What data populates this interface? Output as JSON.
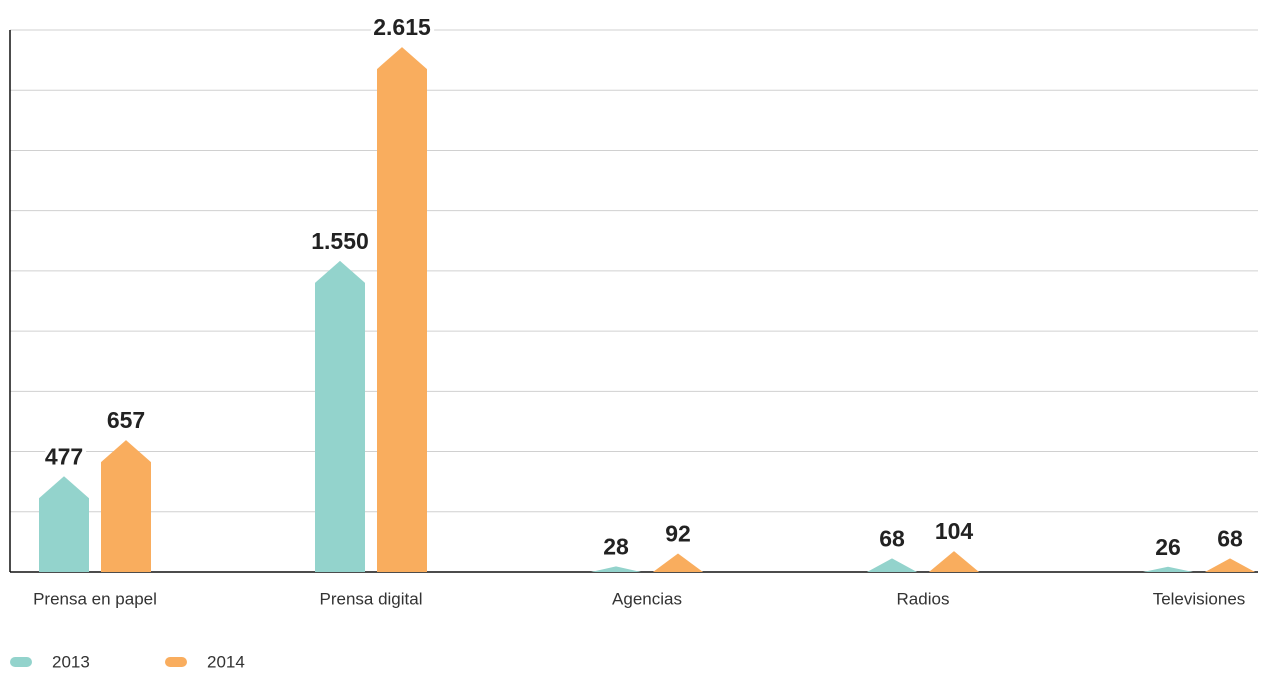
{
  "chart_data": {
    "type": "bar",
    "categories": [
      "Prensa en papel",
      "Prensa digital",
      "Agencias",
      "Radios",
      "Televisiones"
    ],
    "series": [
      {
        "name": "2013",
        "color": "#93d3cc",
        "values": [
          477,
          1550,
          28,
          68,
          26
        ],
        "value_labels": [
          "477",
          "1.550",
          "28",
          "68",
          "26"
        ]
      },
      {
        "name": "2014",
        "color": "#f9ad5e",
        "values": [
          657,
          2615,
          92,
          104,
          68
        ],
        "value_labels": [
          "657",
          "2.615",
          "92",
          "104",
          "68"
        ]
      }
    ],
    "ylim": [
      0,
      2700
    ],
    "yticks": [
      0,
      300,
      600,
      900,
      1200,
      1500,
      1800,
      2100,
      2400,
      2700
    ],
    "grid": true,
    "legend": "bottom-left"
  }
}
